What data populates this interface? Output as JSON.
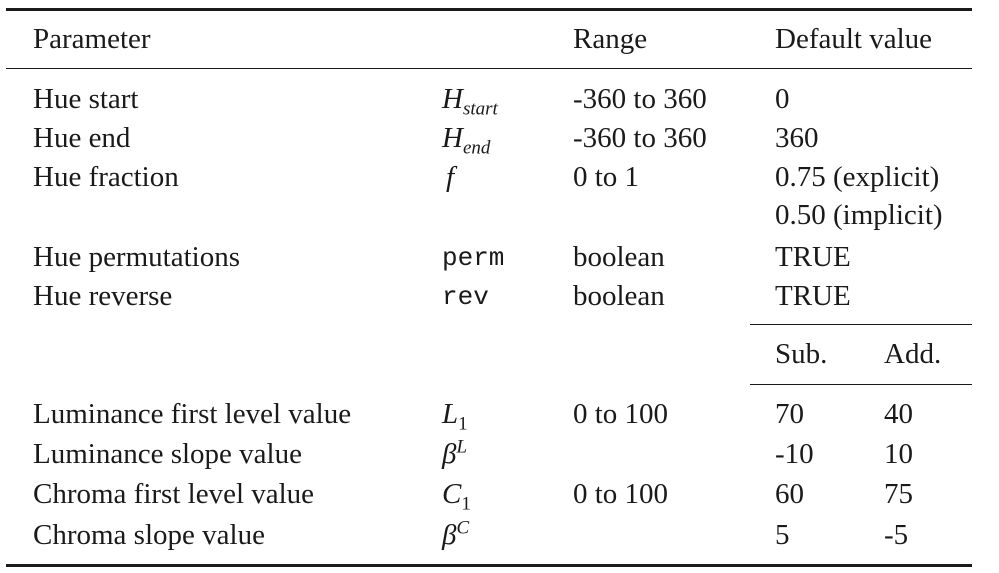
{
  "headers": {
    "parameter": "Parameter",
    "range": "Range",
    "default": "Default value"
  },
  "rows": [
    {
      "parameter": "Hue start",
      "symbol": "H",
      "symbol_sub": "start",
      "range": "-360 to 360",
      "default": "0"
    },
    {
      "parameter": "Hue end",
      "symbol": "H",
      "symbol_sub": "end",
      "range": "-360 to 360",
      "default": "360"
    },
    {
      "parameter": "Hue fraction",
      "symbol": "f",
      "range": "0 to 1",
      "default": "0.75 (explicit)",
      "default_2": "0.50 (implicit)"
    },
    {
      "parameter": "Hue permutations",
      "symbol": "perm",
      "range": "boolean",
      "default": "TRUE"
    },
    {
      "parameter": "Hue reverse",
      "symbol": "rev",
      "range": "boolean",
      "default": "TRUE"
    }
  ],
  "subheaders": {
    "sub": "Sub.",
    "add": "Add."
  },
  "rows2": [
    {
      "parameter": "Luminance first level value",
      "symbol": "L",
      "symbol_sub": "1",
      "range": "0 to 100",
      "sub": "70",
      "add": "40"
    },
    {
      "parameter": "Luminance slope value",
      "symbol": "β",
      "symbol_sup": "L",
      "range": "",
      "sub": "-10",
      "add": "10"
    },
    {
      "parameter": "Chroma first level value",
      "symbol": "C",
      "symbol_sub": "1",
      "range": "0 to 100",
      "sub": "60",
      "add": "75"
    },
    {
      "parameter": "Chroma slope value",
      "symbol": "β",
      "symbol_sup": "C",
      "range": "",
      "sub": "5",
      "add": "-5"
    }
  ]
}
